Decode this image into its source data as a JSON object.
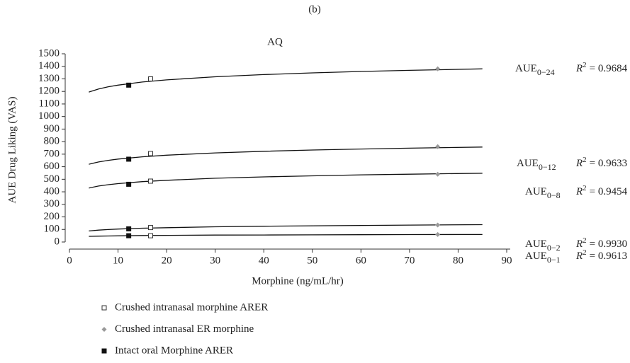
{
  "chart_data": {
    "type": "scatter",
    "panel": "(b)",
    "title": "AQ",
    "x_label": "Morphine (ng/mL/hr)",
    "y_label": "AUE Drug Liking (VAS)",
    "xlim": [
      0,
      90
    ],
    "ylim": [
      0,
      1500
    ],
    "xticks": [
      0,
      10,
      20,
      30,
      40,
      50,
      60,
      70,
      80,
      90
    ],
    "yticks": [
      0,
      100,
      200,
      300,
      400,
      500,
      600,
      700,
      800,
      900,
      1000,
      1100,
      1200,
      1300,
      1400,
      1500
    ],
    "series": [
      {
        "name": "Crushed intranasal morphine ARER",
        "marker": "open-square",
        "color": "#333333",
        "x": 16.7,
        "values": [
          1300,
          705,
          485,
          115,
          50
        ]
      },
      {
        "name": "Crushed intranasal ER morphine",
        "marker": "diamond",
        "color": "#999999",
        "x": 75.8,
        "values": [
          1380,
          760,
          540,
          135,
          60
        ]
      },
      {
        "name": "Intact oral Morphine ARER",
        "marker": "filled-square",
        "color": "#111111",
        "x": 12.2,
        "values": [
          1250,
          660,
          460,
          105,
          50
        ]
      }
    ],
    "fits": [
      {
        "label": "AUE",
        "subscript": "0−24",
        "r2_symbol": "R",
        "r2_power": "2",
        "r2": "= 0.9684",
        "x": [
          4,
          6,
          8,
          10,
          15,
          20,
          30,
          40,
          50,
          60,
          70,
          85
        ],
        "values": [
          1195,
          1219,
          1237,
          1250,
          1275,
          1292,
          1317,
          1334,
          1348,
          1359,
          1368,
          1380
        ]
      },
      {
        "label": "AUE",
        "subscript": "0−12",
        "r2_symbol": "R",
        "r2_power": "2",
        "r2": "= 0.9633",
        "x": [
          4,
          6,
          8,
          10,
          15,
          20,
          30,
          40,
          50,
          60,
          70,
          85
        ],
        "values": [
          620,
          638,
          651,
          661,
          679,
          692,
          710,
          723,
          733,
          741,
          748,
          757
        ]
      },
      {
        "label": "AUE",
        "subscript": "0−8",
        "r2_symbol": "R",
        "r2_power": "2",
        "r2": "= 0.9454",
        "x": [
          4,
          6,
          8,
          10,
          15,
          20,
          30,
          40,
          50,
          60,
          70,
          85
        ],
        "values": [
          430,
          446,
          457,
          465,
          481,
          492,
          508,
          519,
          527,
          535,
          540,
          548
        ]
      },
      {
        "label": "AUE",
        "subscript": "0−2",
        "r2_symbol": "R",
        "r2_power": "2",
        "r2": "= 0.9930",
        "x": [
          4,
          6,
          8,
          10,
          15,
          20,
          30,
          40,
          50,
          60,
          70,
          85
        ],
        "values": [
          88,
          95,
          99,
          103,
          110,
          114,
          121,
          126,
          129,
          132,
          135,
          138
        ]
      },
      {
        "label": "AUE",
        "subscript": "0−1",
        "r2_symbol": "R",
        "r2_power": "2",
        "r2": "= 0.9613",
        "x": [
          4,
          6,
          8,
          10,
          15,
          20,
          30,
          40,
          50,
          60,
          70,
          85
        ],
        "values": [
          45,
          47,
          48,
          49,
          52,
          53,
          55,
          56,
          57,
          58,
          59,
          60
        ]
      }
    ]
  }
}
